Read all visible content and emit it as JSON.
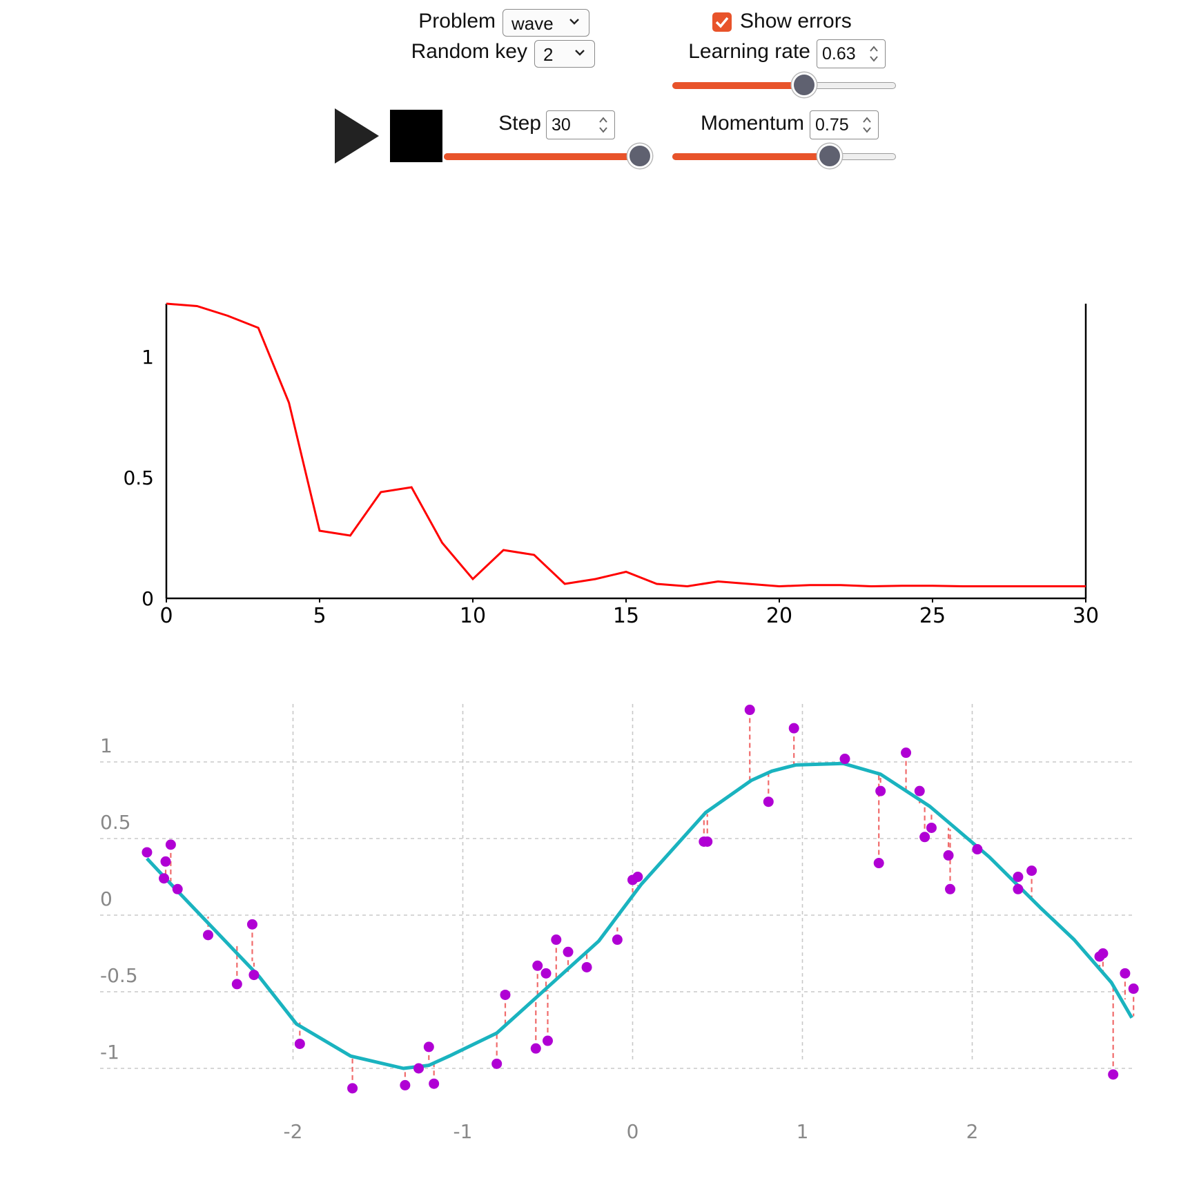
{
  "controls": {
    "problem": {
      "label": "Problem",
      "value": "wave"
    },
    "random_key": {
      "label": "Random key",
      "value": "2"
    },
    "show_errors": {
      "label": "Show errors",
      "checked": true
    },
    "learning_rate": {
      "label": "Learning rate",
      "value": "0.63",
      "level": 0.6
    },
    "step": {
      "label": "Step",
      "value": "30",
      "level": 1.0
    },
    "momentum": {
      "label": "Momentum",
      "value": "0.75",
      "level": 0.73
    },
    "play_icon": "play-icon",
    "stop_icon": "stop-icon",
    "accent_color": "#e8532a"
  },
  "chart_data": [
    {
      "type": "line",
      "title": "",
      "xlabel": "",
      "ylabel": "",
      "x": [
        0,
        1,
        2,
        3,
        4,
        5,
        6,
        7,
        8,
        9,
        10,
        11,
        12,
        13,
        14,
        15,
        16,
        17,
        18,
        19,
        20,
        21,
        22,
        23,
        24,
        25,
        26,
        27,
        28,
        29,
        30
      ],
      "series": [
        {
          "values": [
            1.22,
            1.21,
            1.17,
            1.12,
            0.81,
            0.28,
            0.26,
            0.44,
            0.46,
            0.23,
            0.08,
            0.2,
            0.18,
            0.06,
            0.08,
            0.11,
            0.06,
            0.05,
            0.07,
            0.06,
            0.05,
            0.055,
            0.055,
            0.05,
            0.052,
            0.052,
            0.05,
            0.05,
            0.05,
            0.05,
            0.05
          ],
          "color": "#ff0000"
        }
      ],
      "xticks": [
        "0",
        "5",
        "10",
        "15",
        "20",
        "25",
        "30"
      ],
      "yticks": [
        "0",
        "0.5",
        "1"
      ],
      "xlim": [
        0,
        30
      ],
      "ylim": [
        0,
        1.22
      ]
    },
    {
      "type": "scatter",
      "title": "",
      "xlabel": "",
      "ylabel": "",
      "xlim": [
        -2.9,
        2.95
      ],
      "ylim": [
        -1.25,
        1.33
      ],
      "xticks": [
        "-2",
        "-1",
        "0",
        "1",
        "2"
      ],
      "yticks": [
        "1",
        "0.5",
        "0",
        "-0.5",
        "-1"
      ],
      "grid": true,
      "fit_color": "#1ab3bf",
      "point_color": "#b000d4",
      "error_color": "#f06b6b",
      "fit_line": {
        "x": [
          -2.86,
          -2.7,
          -2.2,
          -1.98,
          -1.66,
          -1.35,
          -1.2,
          -1.08,
          -0.8,
          -0.5,
          -0.2,
          0.05,
          0.43,
          0.7,
          0.82,
          0.96,
          1.24,
          1.46,
          1.75,
          1.92,
          2.1,
          2.4,
          2.6,
          2.82,
          2.94
        ],
        "y": [
          0.37,
          0.18,
          -0.4,
          -0.71,
          -0.92,
          -1.0,
          -0.98,
          -0.92,
          -0.77,
          -0.47,
          -0.17,
          0.2,
          0.67,
          0.88,
          0.94,
          0.98,
          0.99,
          0.92,
          0.71,
          0.55,
          0.38,
          0.05,
          -0.16,
          -0.44,
          -0.67
        ]
      },
      "points": {
        "x": [
          -2.86,
          -2.75,
          -2.76,
          -2.72,
          -2.68,
          -2.5,
          -2.33,
          -2.24,
          -2.23,
          -1.96,
          -1.65,
          -1.34,
          -1.26,
          -1.2,
          -1.17,
          -0.8,
          -0.75,
          -0.57,
          -0.56,
          -0.51,
          -0.5,
          -0.45,
          -0.38,
          -0.27,
          -0.09,
          0,
          0.03,
          0.42,
          0.44,
          0.69,
          0.8,
          0.95,
          1.25,
          1.45,
          1.46,
          1.61,
          1.69,
          1.72,
          1.76,
          1.86,
          1.87,
          2.03,
          2.27,
          2.27,
          2.35,
          2.75,
          2.77,
          2.83,
          2.9,
          2.95
        ],
        "y": [
          0.41,
          0.35,
          0.24,
          0.46,
          0.17,
          -0.13,
          -0.45,
          -0.06,
          -0.39,
          -0.84,
          -1.13,
          -1.11,
          -1.0,
          -0.86,
          -1.1,
          -0.97,
          -0.52,
          -0.87,
          -0.33,
          -0.38,
          -0.82,
          -0.16,
          -0.24,
          -0.34,
          -0.16,
          0.23,
          0.25,
          0.48,
          0.48,
          1.34,
          0.74,
          1.22,
          1.02,
          0.34,
          0.81,
          1.06,
          0.81,
          0.51,
          0.57,
          0.39,
          0.17,
          0.43,
          0.25,
          0.17,
          0.29,
          -0.27,
          -0.25,
          -1.04,
          -0.38,
          -0.48
        ]
      },
      "fitted_at_points": [
        0.37,
        0.27,
        0.27,
        0.22,
        0.18,
        -0.01,
        -0.2,
        -0.3,
        -0.31,
        -0.69,
        -0.92,
        -1.0,
        -0.99,
        -0.98,
        -0.97,
        -0.77,
        -0.72,
        -0.55,
        -0.54,
        -0.5,
        -0.49,
        -0.43,
        -0.37,
        -0.25,
        -0.08,
        0.15,
        0.19,
        0.65,
        0.66,
        0.87,
        0.94,
        0.98,
        0.99,
        0.92,
        0.91,
        0.8,
        0.73,
        0.71,
        0.67,
        0.57,
        0.56,
        0.45,
        0.18,
        0.18,
        0.09,
        -0.36,
        -0.39,
        -0.46,
        -0.55,
        -0.66
      ]
    }
  ]
}
